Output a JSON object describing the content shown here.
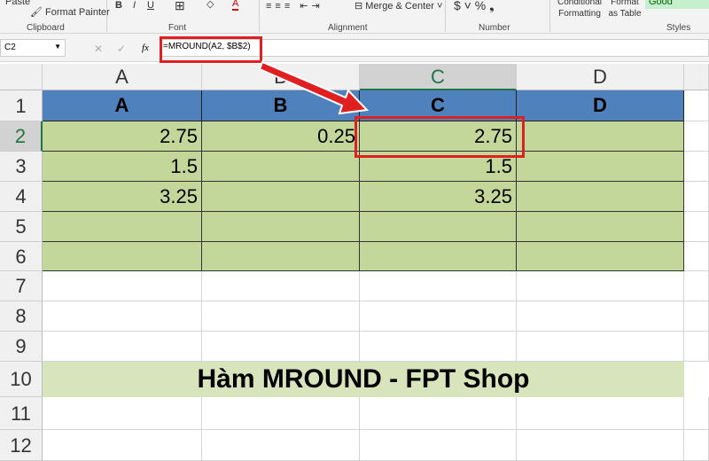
{
  "ribbon": {
    "paste": "Paste",
    "format_painter": "Format Painter",
    "clipboard": "Clipboard",
    "font": "Font",
    "alignment": "Alignment",
    "merge_center": "Merge & Center",
    "number": "Number",
    "conditional_formatting": "Conditional Formatting",
    "format_as_table": "Format as Table",
    "style_good": "Good",
    "styles": "Styles"
  },
  "formula_bar": {
    "name_box": "C2",
    "formula": "=MROUND(A2, $B$2)"
  },
  "columns": [
    "A",
    "B",
    "C",
    "D"
  ],
  "rows": [
    "1",
    "2",
    "3",
    "4",
    "5",
    "6",
    "7",
    "8",
    "9",
    "10",
    "11",
    "12"
  ],
  "header_row": [
    "A",
    "B",
    "C",
    "D"
  ],
  "data": [
    [
      "2.75",
      "0.25",
      "2.75",
      ""
    ],
    [
      "1.5",
      "",
      "1.5",
      ""
    ],
    [
      "3.25",
      "",
      "3.25",
      ""
    ],
    [
      "",
      "",
      "",
      ""
    ],
    [
      "",
      "",
      "",
      ""
    ]
  ],
  "banner": "Hàm MROUND - FPT Shop",
  "colors": {
    "header": "#4f81bd",
    "data": "#c4d79b",
    "banner": "#d8e4bc",
    "highlight": "#e02020"
  }
}
